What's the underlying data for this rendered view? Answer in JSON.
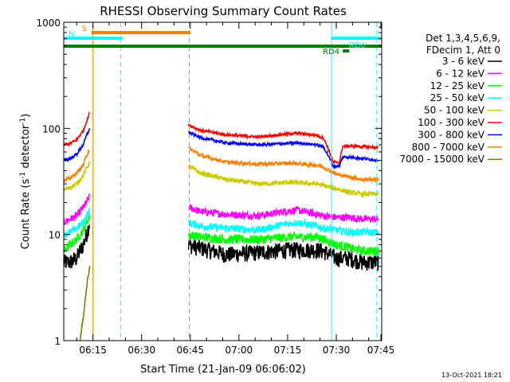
{
  "chart_data": {
    "type": "line",
    "title": "RHESSI Observing Summary Count Rates",
    "xlabel": "Start Time (21-Jan-09 06:06:02)",
    "ylabel_main": "Count Rate (s",
    "ylabel_sup1": "-1",
    "ylabel_mid": " detector",
    "ylabel_sup2": "-1",
    "ylabel_end": ")",
    "yscale": "log",
    "xlim_minutes": [
      0,
      98
    ],
    "ylim": [
      1,
      1000
    ],
    "x_ticks": [
      {
        "t": 9,
        "label": "06:15"
      },
      {
        "t": 24,
        "label": "06:30"
      },
      {
        "t": 39,
        "label": "06:45"
      },
      {
        "t": 54,
        "label": "07:00"
      },
      {
        "t": 69,
        "label": "07:15"
      },
      {
        "t": 84,
        "label": "07:30"
      },
      {
        "t": 99,
        "label": "07:45"
      }
    ],
    "y_ticks": [
      {
        "v": 1,
        "label": "1"
      },
      {
        "v": 10,
        "label": "10"
      },
      {
        "v": 100,
        "label": "100"
      },
      {
        "v": 1000,
        "label": "1000"
      }
    ],
    "legend_header": [
      "Det 1,3,4,5,6,9,",
      "FDecim 1, Att 0"
    ],
    "series": [
      {
        "name": "3 - 6 keV",
        "color": "#000000",
        "before": [
          [
            0,
            5.5
          ],
          [
            2,
            5.5
          ],
          [
            4,
            6
          ],
          [
            6,
            8
          ],
          [
            7,
            10
          ],
          [
            8,
            13
          ]
        ],
        "after": [
          [
            38.5,
            8
          ],
          [
            42,
            7.5
          ],
          [
            50,
            6.5
          ],
          [
            60,
            6.8
          ],
          [
            70,
            7.2
          ],
          [
            78,
            7.2
          ],
          [
            80,
            7.0
          ],
          [
            84,
            6.0
          ],
          [
            88,
            6.0
          ],
          [
            92,
            5.5
          ],
          [
            97,
            5.5
          ]
        ]
      },
      {
        "name": "6 - 12 keV",
        "color": "#ff00ff",
        "before": [
          [
            0,
            13
          ],
          [
            2,
            14
          ],
          [
            4,
            15
          ],
          [
            6,
            18
          ],
          [
            7,
            20
          ],
          [
            8,
            23
          ]
        ],
        "after": [
          [
            38.5,
            18
          ],
          [
            42,
            16.5
          ],
          [
            50,
            15.5
          ],
          [
            60,
            15
          ],
          [
            68,
            16.5
          ],
          [
            72,
            17
          ],
          [
            78,
            15.5
          ],
          [
            80,
            15
          ],
          [
            84,
            14.5
          ],
          [
            88,
            14.5
          ],
          [
            92,
            14
          ],
          [
            97,
            14
          ]
        ]
      },
      {
        "name": "12 - 25 keV",
        "color": "#00ff00",
        "before": [
          [
            0,
            7
          ],
          [
            2,
            8
          ],
          [
            4,
            9
          ],
          [
            6,
            11
          ],
          [
            7,
            13
          ],
          [
            8,
            15
          ]
        ],
        "after": [
          [
            38.5,
            10
          ],
          [
            42,
            9.5
          ],
          [
            50,
            9
          ],
          [
            60,
            9
          ],
          [
            70,
            9.5
          ],
          [
            78,
            9.5
          ],
          [
            80,
            9
          ],
          [
            84,
            8
          ],
          [
            88,
            7.5
          ],
          [
            92,
            7
          ],
          [
            97,
            7
          ]
        ]
      },
      {
        "name": "25 - 50 keV",
        "color": "#00ffff",
        "before": [
          [
            0,
            10
          ],
          [
            2,
            10.5
          ],
          [
            4,
            11.5
          ],
          [
            6,
            13
          ],
          [
            7,
            15
          ],
          [
            8,
            17
          ]
        ],
        "after": [
          [
            38.5,
            13
          ],
          [
            42,
            12
          ],
          [
            50,
            11.5
          ],
          [
            60,
            11
          ],
          [
            68,
            12.5
          ],
          [
            72,
            13
          ],
          [
            78,
            12
          ],
          [
            80,
            11.5
          ],
          [
            84,
            11
          ],
          [
            88,
            10.5
          ],
          [
            92,
            10.5
          ],
          [
            97,
            10.5
          ]
        ]
      },
      {
        "name": "50 - 100 keV",
        "color": "#cccc00",
        "before": [
          [
            0,
            26
          ],
          [
            2,
            28
          ],
          [
            4,
            30
          ],
          [
            6,
            36
          ],
          [
            7,
            42
          ],
          [
            8,
            48
          ]
        ],
        "after": [
          [
            38.5,
            44
          ],
          [
            42,
            38
          ],
          [
            50,
            33
          ],
          [
            60,
            30
          ],
          [
            70,
            31
          ],
          [
            78,
            30
          ],
          [
            80,
            29
          ],
          [
            84,
            27
          ],
          [
            88,
            25
          ],
          [
            92,
            24
          ],
          [
            97,
            24
          ]
        ]
      },
      {
        "name": "100 - 300 keV",
        "color": "#ff0000",
        "before": [
          [
            0,
            70
          ],
          [
            2,
            72
          ],
          [
            4,
            78
          ],
          [
            6,
            95
          ],
          [
            7,
            115
          ],
          [
            8,
            140
          ]
        ],
        "after": [
          [
            38.5,
            108
          ],
          [
            42,
            96
          ],
          [
            50,
            87
          ],
          [
            60,
            83
          ],
          [
            68,
            88
          ],
          [
            72,
            90
          ],
          [
            78,
            86
          ],
          [
            80,
            81
          ],
          [
            83,
            48
          ],
          [
            85,
            48
          ],
          [
            86,
            68
          ],
          [
            90,
            68
          ],
          [
            97,
            66
          ]
        ]
      },
      {
        "name": "300 - 800 keV",
        "color": "#0000ff",
        "before": [
          [
            0,
            50
          ],
          [
            2,
            52
          ],
          [
            4,
            57
          ],
          [
            6,
            70
          ],
          [
            7,
            85
          ],
          [
            8,
            100
          ]
        ],
        "after": [
          [
            38.5,
            92
          ],
          [
            42,
            82
          ],
          [
            50,
            73
          ],
          [
            60,
            70
          ],
          [
            68,
            72
          ],
          [
            72,
            73
          ],
          [
            78,
            70
          ],
          [
            80,
            67
          ],
          [
            83,
            44
          ],
          [
            85,
            44
          ],
          [
            86,
            54
          ],
          [
            90,
            53
          ],
          [
            97,
            50
          ]
        ]
      },
      {
        "name": "800 - 7000 keV",
        "color": "#ff8000",
        "before": [
          [
            0,
            32
          ],
          [
            2,
            34
          ],
          [
            4,
            38
          ],
          [
            6,
            45
          ],
          [
            7,
            55
          ],
          [
            8,
            65
          ]
        ],
        "after": [
          [
            38.5,
            65
          ],
          [
            42,
            56
          ],
          [
            50,
            48
          ],
          [
            60,
            46
          ],
          [
            70,
            47
          ],
          [
            78,
            45
          ],
          [
            80,
            43
          ],
          [
            84,
            37
          ],
          [
            88,
            35
          ],
          [
            92,
            33
          ],
          [
            97,
            33
          ]
        ]
      },
      {
        "name": "7000 - 15000 keV",
        "color": "#808000",
        "before": [
          [
            5,
            1
          ],
          [
            6,
            1.6
          ],
          [
            7,
            3
          ],
          [
            7.5,
            4
          ],
          [
            8,
            5
          ]
        ],
        "after": []
      }
    ],
    "state_bars": [
      {
        "label": "S",
        "color": "#ff8000",
        "x0": 8.5,
        "x1": 39
      },
      {
        "label": "N",
        "color": "#00ffff",
        "x0": 0,
        "x1": 18
      },
      {
        "label": "",
        "color": "#008000",
        "x0": 0,
        "x1": 98
      },
      {
        "label": "RD0",
        "color": "#00ffff",
        "x0": 82.5,
        "x1": 98
      },
      {
        "label": "RD4",
        "color": "#008000",
        "x0": 86,
        "x1": 88
      }
    ],
    "vertical_lines": [
      {
        "t": 0,
        "color": "#00ffff",
        "style": "solid"
      },
      {
        "t": 9,
        "color": "#ff8000",
        "style": "solid"
      },
      {
        "t": 17.6,
        "color": "#00ffff",
        "style": "dashed"
      },
      {
        "t": 38.7,
        "color": "#ff8000",
        "style": "dashed"
      },
      {
        "t": 82.5,
        "color": "#00ffff",
        "style": "solid"
      },
      {
        "t": 96.5,
        "color": "#00ffff",
        "style": "dashed"
      }
    ],
    "timestamp": "13-Oct-2021 18:21"
  }
}
